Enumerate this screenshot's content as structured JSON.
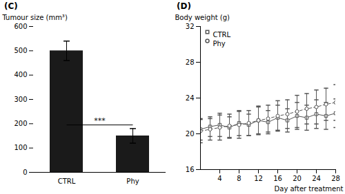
{
  "chart_data": [
    {
      "type": "bar",
      "title": "(C)",
      "categories": [
        "CTRL",
        "Phy"
      ],
      "values": [
        500,
        150
      ],
      "errors": [
        40,
        30
      ],
      "colors": [
        "#1a1a1a",
        "#1a1a1a"
      ],
      "ylabel": "Tumour size (mm³)",
      "ylim": [
        0,
        600
      ],
      "yticks": [
        0,
        100,
        200,
        300,
        400,
        500,
        600
      ],
      "annotations": [
        {
          "text": "***",
          "x": [
            "CTRL",
            "Phy"
          ],
          "y": 195
        }
      ],
      "grid": false
    },
    {
      "type": "line",
      "title": "(D)",
      "xlabel": "Day after treatment",
      "ylabel": "Body weight (g)",
      "x": [
        0,
        2,
        4,
        6,
        8,
        10,
        12,
        14,
        16,
        18,
        20,
        22,
        24,
        26,
        28
      ],
      "series": [
        {
          "name": "CTRL",
          "color": "#555555",
          "marker": "square",
          "line_style": "solid",
          "values": [
            20.5,
            20.8,
            21.0,
            20.7,
            21.2,
            21.0,
            21.5,
            21.3,
            21.8,
            21.5,
            22.0,
            21.8,
            22.2,
            22.0,
            22.3
          ],
          "errors": [
            1.2,
            1.1,
            1.3,
            1.2,
            1.4,
            1.2,
            1.5,
            1.3,
            1.4,
            1.3,
            1.5,
            1.4,
            1.6,
            1.5,
            1.6
          ]
        },
        {
          "name": "Phy",
          "color": "#555555",
          "marker": "circle",
          "line_style": "dashed",
          "values": [
            20.3,
            20.5,
            20.7,
            20.9,
            21.0,
            21.2,
            21.5,
            21.7,
            22.0,
            22.2,
            22.5,
            22.8,
            23.0,
            23.3,
            23.5
          ],
          "errors": [
            1.3,
            1.2,
            1.4,
            1.3,
            1.5,
            1.4,
            1.6,
            1.5,
            1.7,
            1.6,
            1.8,
            1.7,
            1.9,
            1.8,
            2.0
          ]
        }
      ],
      "xlim": [
        0,
        28
      ],
      "xticks": [
        4,
        8,
        12,
        16,
        20,
        24,
        28
      ],
      "ylim": [
        16,
        32
      ],
      "yticks": [
        16,
        20,
        24,
        28,
        32
      ],
      "legend": "upper left",
      "grid": false
    }
  ]
}
